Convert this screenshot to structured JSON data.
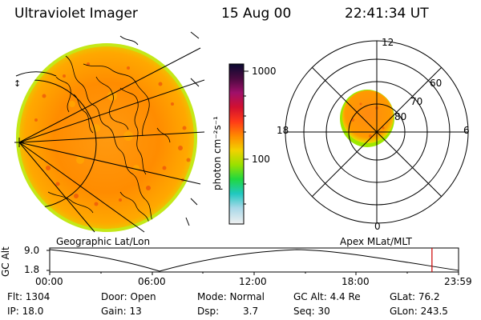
{
  "header": {
    "title": "Ultraviolet Imager",
    "date": "15 Aug 00",
    "time": "22:41:34 UT"
  },
  "colorbar": {
    "ticks": [
      "1000",
      "100"
    ],
    "unit_label": "photon cm⁻²s⁻¹",
    "stops": [
      "#0a0a30",
      "#4a0a40",
      "#a0106a",
      "#d21030",
      "#ff3a18",
      "#ff8a00",
      "#f2d200",
      "#9ae000",
      "#20d840",
      "#20c8c0",
      "#a8d8e8",
      "#f0f0f0"
    ]
  },
  "panels": {
    "left_label": "Geographic Lat/Lon",
    "right_label": "Apex MLat/MLT"
  },
  "polar": {
    "mlt_labels": {
      "top": "12",
      "left": "18",
      "right": "6",
      "bottom": "0"
    },
    "lat_labels": [
      "60",
      "70",
      "80"
    ]
  },
  "altitude_plot": {
    "axis_label": "GC Alt",
    "y_ticks": [
      "9.0",
      "1.8"
    ],
    "x_ticks": [
      "00:00",
      "06:00",
      "12:00",
      "18:00",
      "23:59"
    ],
    "current_fraction": 0.935,
    "marker_color": "#cc0000"
  },
  "info": {
    "flt": "Flt: 1304",
    "ip": "IP: 18.0",
    "door": "Door: Open",
    "gain": "Gain: 13",
    "mode": "Mode: Normal",
    "dsp_label": "Dsp:",
    "dsp_value": "3.7",
    "gc_alt": "GC Alt: 4.4 Re",
    "seq": "Seq: 30",
    "glat": "GLat: 76.2",
    "glon": "GLon: 243.5"
  }
}
